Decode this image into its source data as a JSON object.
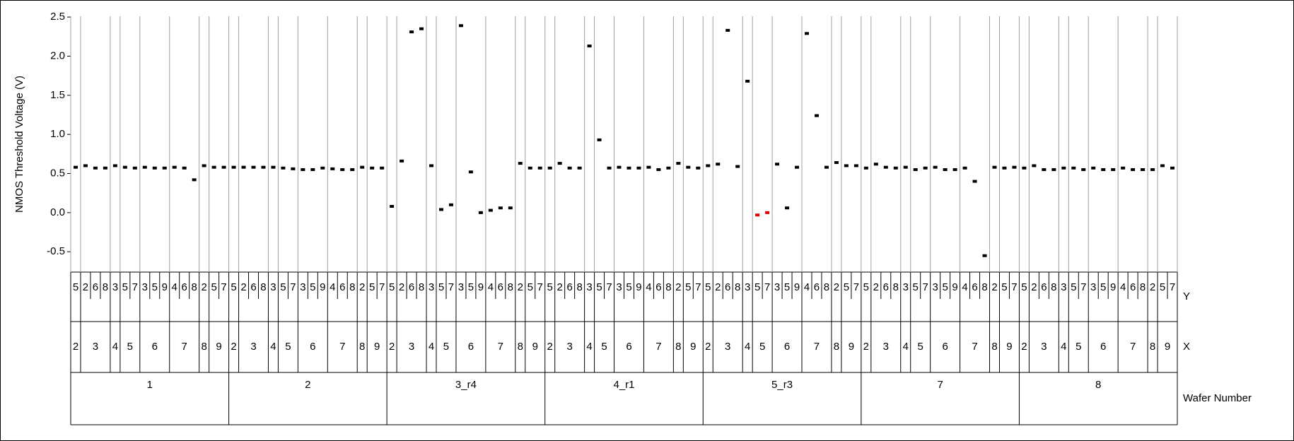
{
  "chart_data": {
    "type": "variability",
    "y_label": "NMOS Threshold Voltage (V)",
    "level_labels": [
      "Y",
      "X",
      "Wafer Number"
    ],
    "ylim": [
      -0.76,
      2.51
    ],
    "yticks": [
      -0.5,
      {
        "value": 0,
        "label": "0.0"
      },
      0.5,
      {
        "value": 1,
        "label": "1.0"
      },
      1.5,
      {
        "value": 2,
        "label": "2.0"
      },
      2.5
    ],
    "color": "#000000",
    "wafers": [
      {
        "label": "1",
        "xs": [
          {
            "label": "2",
            "ys": [
              "5"
            ]
          },
          {
            "label": "3",
            "ys": [
              "2",
              "6",
              "8"
            ]
          },
          {
            "label": "4",
            "ys": [
              "3"
            ]
          },
          {
            "label": "5",
            "ys": [
              "5",
              "7"
            ]
          },
          {
            "label": "6",
            "ys": [
              "3",
              "5",
              "9"
            ]
          },
          {
            "label": "7",
            "ys": [
              "4",
              "6",
              "8"
            ]
          },
          {
            "label": "8",
            "ys": [
              "2"
            ]
          },
          {
            "label": "9",
            "ys": [
              "5",
              "7"
            ]
          }
        ],
        "values": [
          0.58,
          0.6,
          0.57,
          0.57,
          0.6,
          0.58,
          0.57,
          0.58,
          0.57,
          0.57,
          0.58,
          0.57,
          0.42,
          0.6,
          0.58,
          0.58
        ]
      },
      {
        "label": "2",
        "xs": [
          {
            "label": "2",
            "ys": [
              "5"
            ]
          },
          {
            "label": "3",
            "ys": [
              "2",
              "6",
              "8"
            ]
          },
          {
            "label": "4",
            "ys": [
              "3"
            ]
          },
          {
            "label": "5",
            "ys": [
              "5",
              "7"
            ]
          },
          {
            "label": "6",
            "ys": [
              "3",
              "5",
              "9"
            ]
          },
          {
            "label": "7",
            "ys": [
              "4",
              "6",
              "8"
            ]
          },
          {
            "label": "8",
            "ys": [
              "2"
            ]
          },
          {
            "label": "9",
            "ys": [
              "5",
              "7"
            ]
          }
        ],
        "values": [
          0.58,
          0.58,
          0.58,
          0.58,
          0.58,
          0.57,
          0.56,
          0.55,
          0.55,
          0.57,
          0.56,
          0.55,
          0.55,
          0.58,
          0.57,
          0.57
        ]
      },
      {
        "label": "3_r4",
        "xs": [
          {
            "label": "2",
            "ys": [
              "5"
            ]
          },
          {
            "label": "3",
            "ys": [
              "2",
              "6",
              "8"
            ]
          },
          {
            "label": "4",
            "ys": [
              "3"
            ]
          },
          {
            "label": "5",
            "ys": [
              "5",
              "7"
            ]
          },
          {
            "label": "6",
            "ys": [
              "3",
              "5",
              "9"
            ]
          },
          {
            "label": "7",
            "ys": [
              "4",
              "6",
              "8"
            ]
          },
          {
            "label": "8",
            "ys": [
              "2"
            ]
          },
          {
            "label": "9",
            "ys": [
              "5",
              "7"
            ]
          }
        ],
        "values": [
          0.08,
          0.66,
          2.31,
          2.35,
          0.6,
          0.04,
          0.1,
          2.39,
          0.52,
          0.0,
          0.03,
          0.06,
          0.06,
          0.63,
          0.57,
          0.57
        ]
      },
      {
        "label": "4_r1",
        "xs": [
          {
            "label": "2",
            "ys": [
              "5"
            ]
          },
          {
            "label": "3",
            "ys": [
              "2",
              "6",
              "8"
            ]
          },
          {
            "label": "4",
            "ys": [
              "3"
            ]
          },
          {
            "label": "5",
            "ys": [
              "5",
              "7"
            ]
          },
          {
            "label": "6",
            "ys": [
              "3",
              "5",
              "9"
            ]
          },
          {
            "label": "7",
            "ys": [
              "4",
              "6",
              "8"
            ]
          },
          {
            "label": "8",
            "ys": [
              "2"
            ]
          },
          {
            "label": "9",
            "ys": [
              "5",
              "7"
            ]
          }
        ],
        "values": [
          0.57,
          0.63,
          0.57,
          0.57,
          2.13,
          0.93,
          0.57,
          0.58,
          0.57,
          0.57,
          0.58,
          0.55,
          0.57,
          0.63,
          0.58,
          0.57
        ]
      },
      {
        "label": "5_r3",
        "xs": [
          {
            "label": "2",
            "ys": [
              "5"
            ]
          },
          {
            "label": "3",
            "ys": [
              "2",
              "6",
              "8"
            ]
          },
          {
            "label": "4",
            "ys": [
              "3"
            ]
          },
          {
            "label": "5",
            "ys": [
              "5",
              "7"
            ]
          },
          {
            "label": "6",
            "ys": [
              "3",
              "5",
              "9"
            ]
          },
          {
            "label": "7",
            "ys": [
              "4",
              "6",
              "8"
            ]
          },
          {
            "label": "8",
            "ys": [
              "2"
            ]
          },
          {
            "label": "9",
            "ys": [
              "5",
              "7"
            ]
          }
        ],
        "values": [
          0.6,
          0.62,
          2.33,
          0.59,
          1.68,
          -0.03,
          0.0,
          0.62,
          0.06,
          0.58,
          2.29,
          1.24,
          0.58,
          0.64,
          0.6,
          0.6
        ],
        "point_colors": [
          "#000000",
          "#000000",
          "#000000",
          "#000000",
          "#000000",
          "#e00000",
          "#e00000",
          "#000000",
          "#000000",
          "#000000",
          "#000000",
          "#000000",
          "#000000",
          "#000000",
          "#000000",
          "#000000"
        ]
      },
      {
        "label": "7",
        "xs": [
          {
            "label": "2",
            "ys": [
              "5"
            ]
          },
          {
            "label": "3",
            "ys": [
              "2",
              "6",
              "8"
            ]
          },
          {
            "label": "4",
            "ys": [
              "3"
            ]
          },
          {
            "label": "5",
            "ys": [
              "5",
              "7"
            ]
          },
          {
            "label": "6",
            "ys": [
              "3",
              "5",
              "9"
            ]
          },
          {
            "label": "7",
            "ys": [
              "4",
              "6",
              "8"
            ]
          },
          {
            "label": "8",
            "ys": [
              "2"
            ]
          },
          {
            "label": "9",
            "ys": [
              "5",
              "7"
            ]
          }
        ],
        "values": [
          0.57,
          0.62,
          0.58,
          0.57,
          0.58,
          0.55,
          0.57,
          0.58,
          0.55,
          0.55,
          0.57,
          0.4,
          -0.55,
          0.58,
          0.57,
          0.58
        ]
      },
      {
        "label": "8",
        "xs": [
          {
            "label": "2",
            "ys": [
              "5"
            ]
          },
          {
            "label": "3",
            "ys": [
              "2",
              "6",
              "8"
            ]
          },
          {
            "label": "4",
            "ys": [
              "3"
            ]
          },
          {
            "label": "5",
            "ys": [
              "5",
              "7"
            ]
          },
          {
            "label": "6",
            "ys": [
              "3",
              "5",
              "9"
            ]
          },
          {
            "label": "7",
            "ys": [
              "4",
              "6",
              "8"
            ]
          },
          {
            "label": "8",
            "ys": [
              "2"
            ]
          },
          {
            "label": "9",
            "ys": [
              "5",
              "7"
            ]
          }
        ],
        "values": [
          0.57,
          0.6,
          0.55,
          0.55,
          0.57,
          0.57,
          0.55,
          0.57,
          0.55,
          0.55,
          0.57,
          0.55,
          0.55,
          0.55,
          0.6,
          0.57
        ]
      }
    ]
  }
}
